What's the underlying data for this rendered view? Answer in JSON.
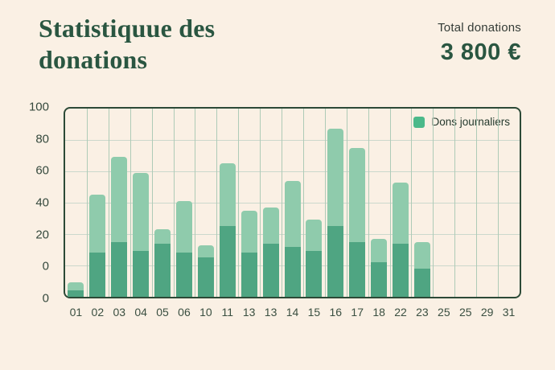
{
  "header": {
    "title": "Statistiquue des donations",
    "total_label": "Total donations",
    "total_value": "3 800 €"
  },
  "colors": {
    "background": "#FAF0E4",
    "accent_green": "#2A5641",
    "bar_light": "#8FCBAC",
    "bar_dark": "#4FA582",
    "legend_swatch": "#4BB98A",
    "plot_border": "#2C4A37",
    "gridline_horizontal": "#CBD8CC",
    "gridline_vertical": "#AECBB7",
    "axis_text": "#35493D"
  },
  "chart_data": {
    "type": "bar",
    "stacked": true,
    "title": "Statistiquue des donations",
    "legend_label": "Dons journaliers",
    "legend_position": "top-right inside plot",
    "grid": true,
    "categories": [
      "01",
      "02",
      "03",
      "04",
      "05",
      "06",
      "10",
      "11",
      "13",
      "13",
      "14",
      "15",
      "16",
      "17",
      "18",
      "22",
      "23",
      "25",
      "25",
      "29",
      "31"
    ],
    "y_tick_labels": [
      "100",
      "80",
      "60",
      "40",
      "20",
      "0",
      "0"
    ],
    "units_per_gridline_interval": 20,
    "plot_span_units": 120,
    "note": "Bars rise from the bottom axis, which sits one gridline interval below the line labeled 0; the bottom tick label '0' is duplicated. Values below are in axis units measured up from the bottom axis (20 units = one gridline interval). Approximate readings of bar tops against the labeled 0-gridline: 02=46, 03=70, 04=60, 05=24, 06=42, 10=14, 11=66, 13=35, 13=37, 14=54, 15=29, 16=88, 17=76, 18=17, 22=54, 23=15.",
    "series": [
      {
        "name": "total_bar_height",
        "color": "#8FCBAC",
        "values": [
          9,
          65,
          89,
          79,
          43,
          61,
          33,
          85,
          55,
          57,
          74,
          49,
          107,
          95,
          37,
          73,
          35,
          0,
          0,
          0,
          0
        ]
      },
      {
        "name": "dark_base_segment",
        "color": "#4FA582",
        "values": [
          4,
          28,
          35,
          29,
          34,
          28,
          25,
          45,
          28,
          34,
          32,
          29,
          45,
          35,
          22,
          34,
          18,
          0,
          0,
          0,
          0
        ]
      }
    ]
  }
}
